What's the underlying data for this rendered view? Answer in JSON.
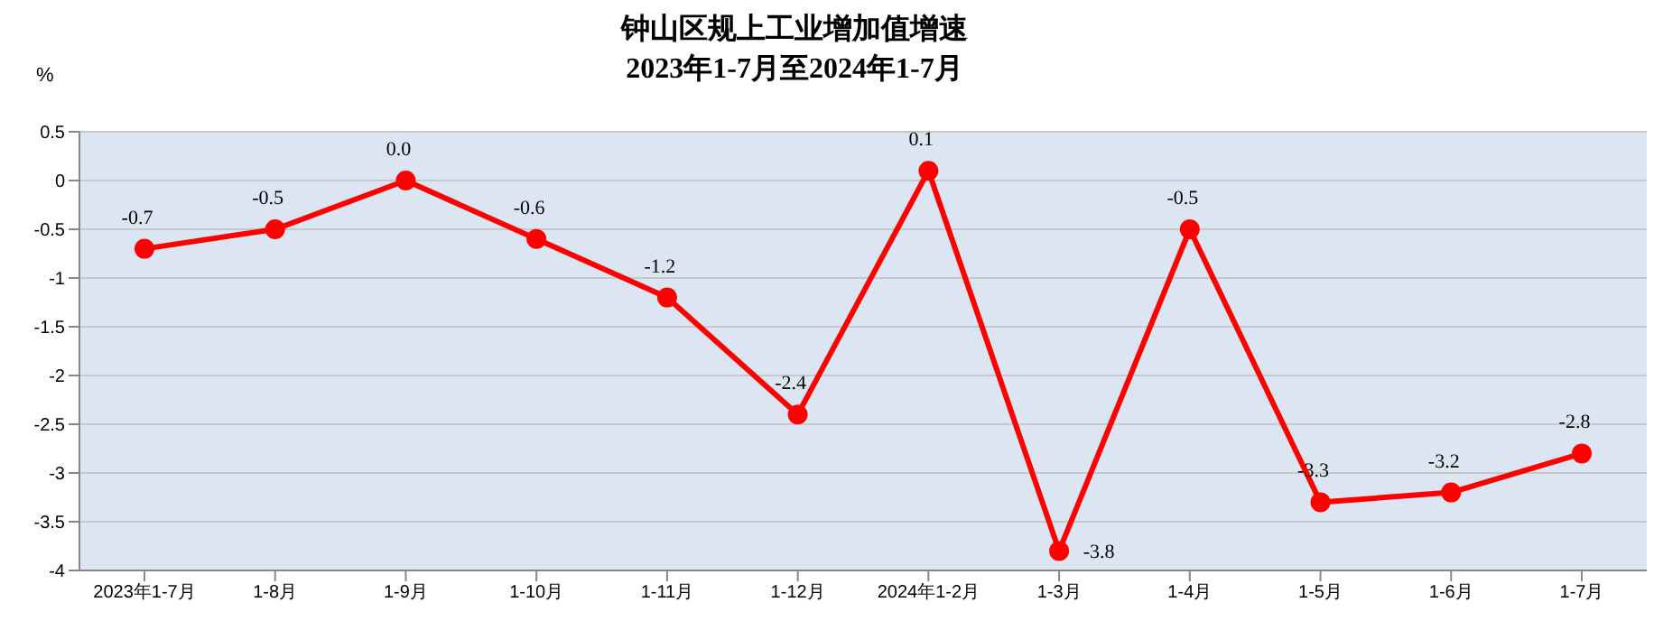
{
  "chart_data": {
    "type": "line",
    "title": "钟山区规上工业增加值增速\n2023年1-7月至2024年1-7月",
    "ylabel": "%",
    "categories": [
      "2023年1-7月",
      "1-8月",
      "1-9月",
      "1-10月",
      "1-11月",
      "1-12月",
      "2024年1-2月",
      "1-3月",
      "1-4月",
      "1-5月",
      "1-6月",
      "1-7月"
    ],
    "series": [
      {
        "color": "#ff0000",
        "values": [
          -0.7,
          -0.5,
          0.0,
          -0.6,
          -1.2,
          -2.4,
          0.1,
          -3.8,
          -0.5,
          -3.3,
          -3.2,
          -2.8
        ],
        "value_labels": [
          "-0.7",
          "-0.5",
          "0.0",
          "-0.6",
          "-1.2",
          "-2.4",
          "0.1",
          "-3.8",
          "-0.5",
          "-3.3",
          "-3.2",
          "-2.8"
        ]
      }
    ],
    "ylim": [
      -4,
      0.5
    ],
    "yticks": [
      0.5,
      0,
      -0.5,
      -1,
      -1.5,
      -2,
      -2.5,
      -3,
      -3.5,
      -4
    ],
    "grid": "y",
    "marker": "circle",
    "legend": false
  }
}
